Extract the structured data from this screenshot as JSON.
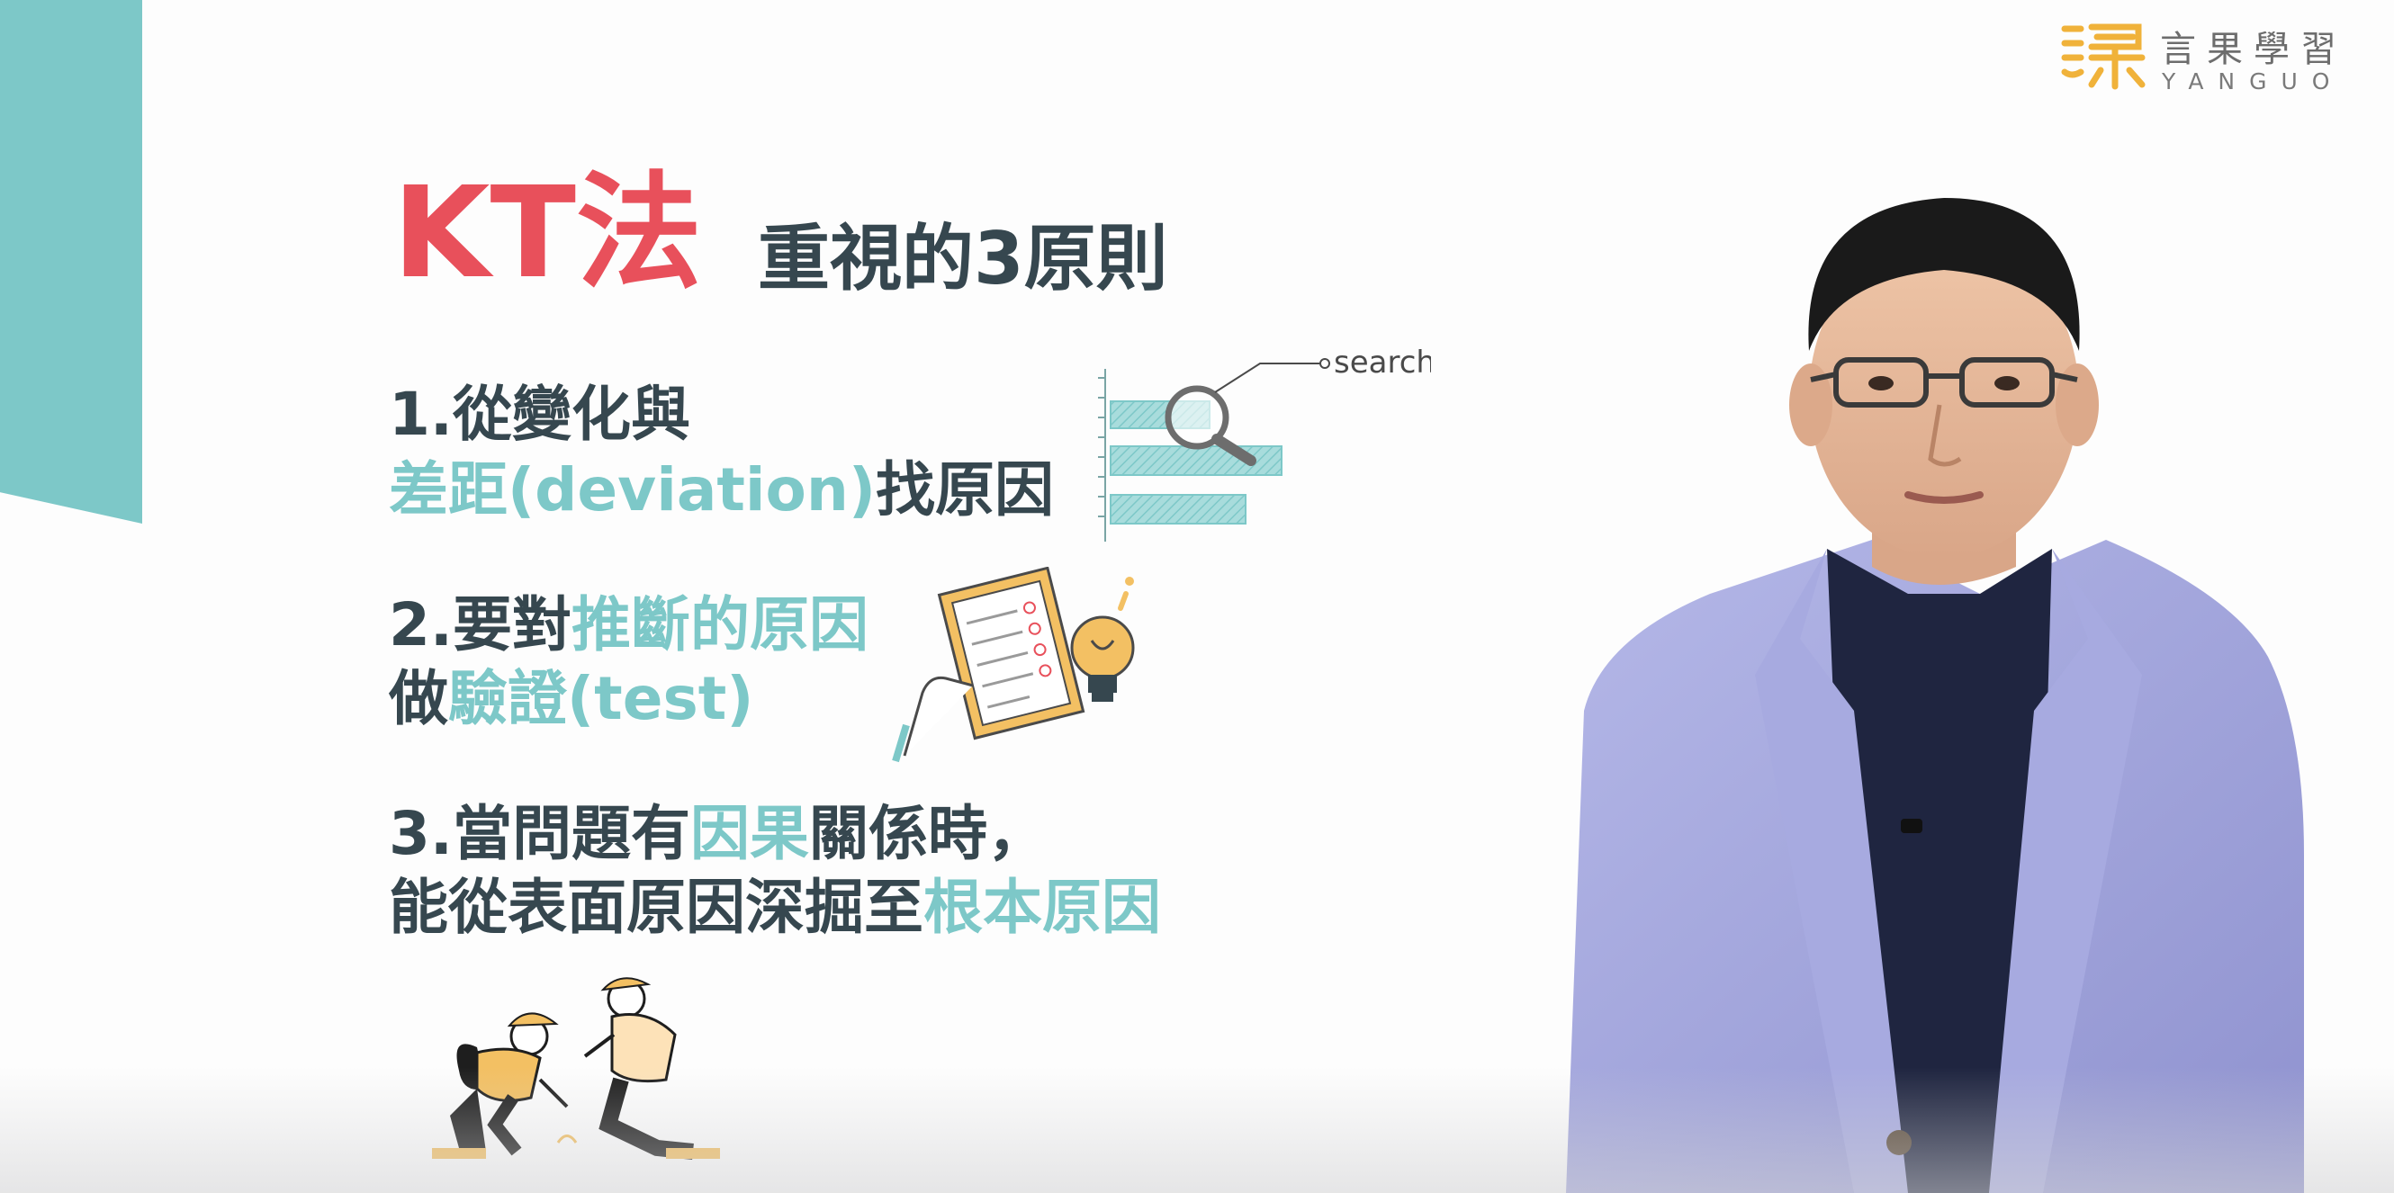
{
  "logo": {
    "chinese": "言果學習",
    "english": "YANGUO",
    "color": "#f0b23a"
  },
  "heading": {
    "title": "KT法",
    "subtitle": "重視的3原則"
  },
  "principles": [
    {
      "line1": [
        {
          "text": "1.從變化與",
          "hl": false
        }
      ],
      "line2": [
        {
          "text": "差距(deviation)",
          "hl": true
        },
        {
          "text": "找原因",
          "hl": false
        }
      ]
    },
    {
      "line1": [
        {
          "text": "2.要對",
          "hl": false
        },
        {
          "text": "推斷的原因",
          "hl": true
        }
      ],
      "line2": [
        {
          "text": "做",
          "hl": false
        },
        {
          "text": "驗證(test)",
          "hl": true
        }
      ]
    },
    {
      "line1": [
        {
          "text": "3.當問題有",
          "hl": false
        },
        {
          "text": "因果",
          "hl": true
        },
        {
          "text": "關係時，",
          "hl": false
        }
      ],
      "line2": [
        {
          "text": "能從表面原因深掘至",
          "hl": false
        },
        {
          "text": "根本原因",
          "hl": true
        }
      ]
    }
  ],
  "illustrations": {
    "search_label": "search",
    "search_icon": "magnifier-bar-chart-icon",
    "checklist_icon": "clipboard-lightbulb-icon",
    "workers_icon": "two-people-digging-icon"
  },
  "colors": {
    "accent_red": "#e8505b",
    "accent_teal": "#7dc8c8",
    "text_dark": "#36474f",
    "logo_gold": "#f0b23a"
  }
}
